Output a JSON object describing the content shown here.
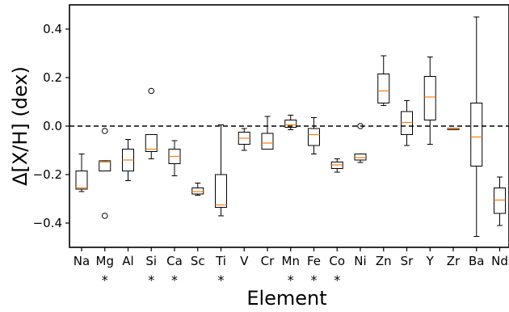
{
  "chart_data": {
    "type": "boxplot",
    "xlabel": "Element",
    "ylabel": "Δ[X/H] (dex)",
    "ylim": [
      -0.5,
      0.5
    ],
    "y_ticks": [
      "0.4",
      "0.2",
      "0.0",
      "−0.2",
      "−0.4"
    ],
    "y_tick_values": [
      0.4,
      0.2,
      0.0,
      -0.2,
      -0.4
    ],
    "reference_line": {
      "y": 0.0,
      "style": "dashed"
    },
    "colors": {
      "box": "#000000",
      "median": "#ff7f0e",
      "outlier": "#000000"
    },
    "categories": [
      "Na",
      "Mg",
      "Al",
      "Si",
      "Ca",
      "Sc",
      "Ti",
      "V",
      "Cr",
      "Mn",
      "Fe",
      "Co",
      "Ni",
      "Zn",
      "Sr",
      "Y",
      "Zr",
      "Ba",
      "Nd"
    ],
    "star_marker": "*",
    "starred": [
      "Mg",
      "Si",
      "Ca",
      "Ti",
      "Mn",
      "Fe",
      "Co"
    ],
    "boxes": [
      {
        "element": "Na",
        "whislo": -0.27,
        "q1": -0.26,
        "med": -0.255,
        "q3": -0.185,
        "whishi": -0.115,
        "fliers": []
      },
      {
        "element": "Mg",
        "whislo": -0.185,
        "q1": -0.185,
        "med": -0.148,
        "q3": -0.143,
        "whishi": -0.143,
        "fliers": [
          -0.02,
          -0.37
        ]
      },
      {
        "element": "Al",
        "whislo": -0.225,
        "q1": -0.185,
        "med": -0.14,
        "q3": -0.095,
        "whishi": -0.055,
        "fliers": []
      },
      {
        "element": "Si",
        "whislo": -0.135,
        "q1": -0.105,
        "med": -0.095,
        "q3": -0.035,
        "whishi": -0.035,
        "fliers": [
          0.145
        ]
      },
      {
        "element": "Ca",
        "whislo": -0.205,
        "q1": -0.155,
        "med": -0.125,
        "q3": -0.095,
        "whishi": -0.06,
        "fliers": []
      },
      {
        "element": "Sc",
        "whislo": -0.285,
        "q1": -0.28,
        "med": -0.27,
        "q3": -0.255,
        "whishi": -0.235,
        "fliers": []
      },
      {
        "element": "Ti",
        "whislo": -0.37,
        "q1": -0.335,
        "med": -0.325,
        "q3": -0.2,
        "whishi": 0.005,
        "fliers": []
      },
      {
        "element": "V",
        "whislo": -0.1,
        "q1": -0.075,
        "med": -0.05,
        "q3": -0.025,
        "whishi": -0.01,
        "fliers": []
      },
      {
        "element": "Cr",
        "whislo": -0.095,
        "q1": -0.095,
        "med": -0.07,
        "q3": -0.03,
        "whishi": 0.04,
        "fliers": []
      },
      {
        "element": "Mn",
        "whislo": -0.015,
        "q1": -0.005,
        "med": 0.005,
        "q3": 0.025,
        "whishi": 0.045,
        "fliers": []
      },
      {
        "element": "Fe",
        "whislo": -0.115,
        "q1": -0.08,
        "med": -0.035,
        "q3": -0.01,
        "whishi": 0.035,
        "fliers": []
      },
      {
        "element": "Co",
        "whislo": -0.19,
        "q1": -0.175,
        "med": -0.16,
        "q3": -0.148,
        "whishi": -0.135,
        "fliers": []
      },
      {
        "element": "Ni",
        "whislo": -0.15,
        "q1": -0.14,
        "med": -0.13,
        "q3": -0.115,
        "whishi": -0.115,
        "fliers": [
          0.0
        ]
      },
      {
        "element": "Zn",
        "whislo": 0.085,
        "q1": 0.095,
        "med": 0.145,
        "q3": 0.215,
        "whishi": 0.29,
        "fliers": []
      },
      {
        "element": "Sr",
        "whislo": -0.08,
        "q1": -0.035,
        "med": 0.015,
        "q3": 0.06,
        "whishi": 0.105,
        "fliers": []
      },
      {
        "element": "Y",
        "whislo": -0.075,
        "q1": 0.025,
        "med": 0.12,
        "q3": 0.205,
        "whishi": 0.285,
        "fliers": []
      },
      {
        "element": "Zr",
        "whislo": -0.015,
        "q1": -0.015,
        "med": -0.012,
        "q3": -0.01,
        "whishi": -0.01,
        "fliers": []
      },
      {
        "element": "Ba",
        "whislo": -0.455,
        "q1": -0.165,
        "med": -0.045,
        "q3": 0.095,
        "whishi": 0.45,
        "fliers": []
      },
      {
        "element": "Nd",
        "whislo": -0.41,
        "q1": -0.36,
        "med": -0.305,
        "q3": -0.255,
        "whishi": -0.21,
        "fliers": []
      }
    ]
  }
}
